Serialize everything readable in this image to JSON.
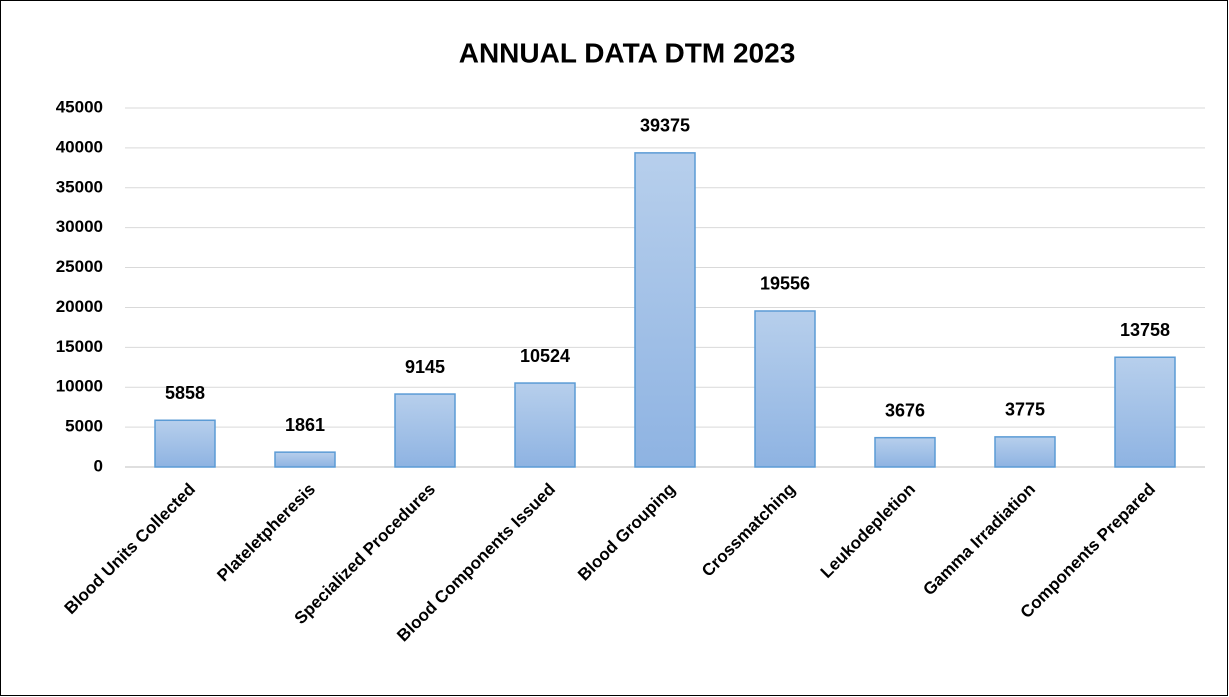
{
  "chart_data": {
    "type": "bar",
    "title": "ANNUAL DATA DTM 2023",
    "categories": [
      "Blood Units Collected",
      "Plateletpheresis",
      "Specialized Procedures",
      "Blood Components Issued",
      "Blood Grouping",
      "Crossmatching",
      "Leukodepletion",
      "Gamma Irradiation",
      "Components Prepared"
    ],
    "values": [
      5858,
      1861,
      9145,
      10524,
      39375,
      19556,
      3676,
      3775,
      13758
    ],
    "color": "#9dbde6",
    "ylim": [
      0,
      45000
    ],
    "yticks": [
      0,
      5000,
      10000,
      15000,
      20000,
      25000,
      30000,
      35000,
      40000,
      45000
    ],
    "grid": true
  }
}
